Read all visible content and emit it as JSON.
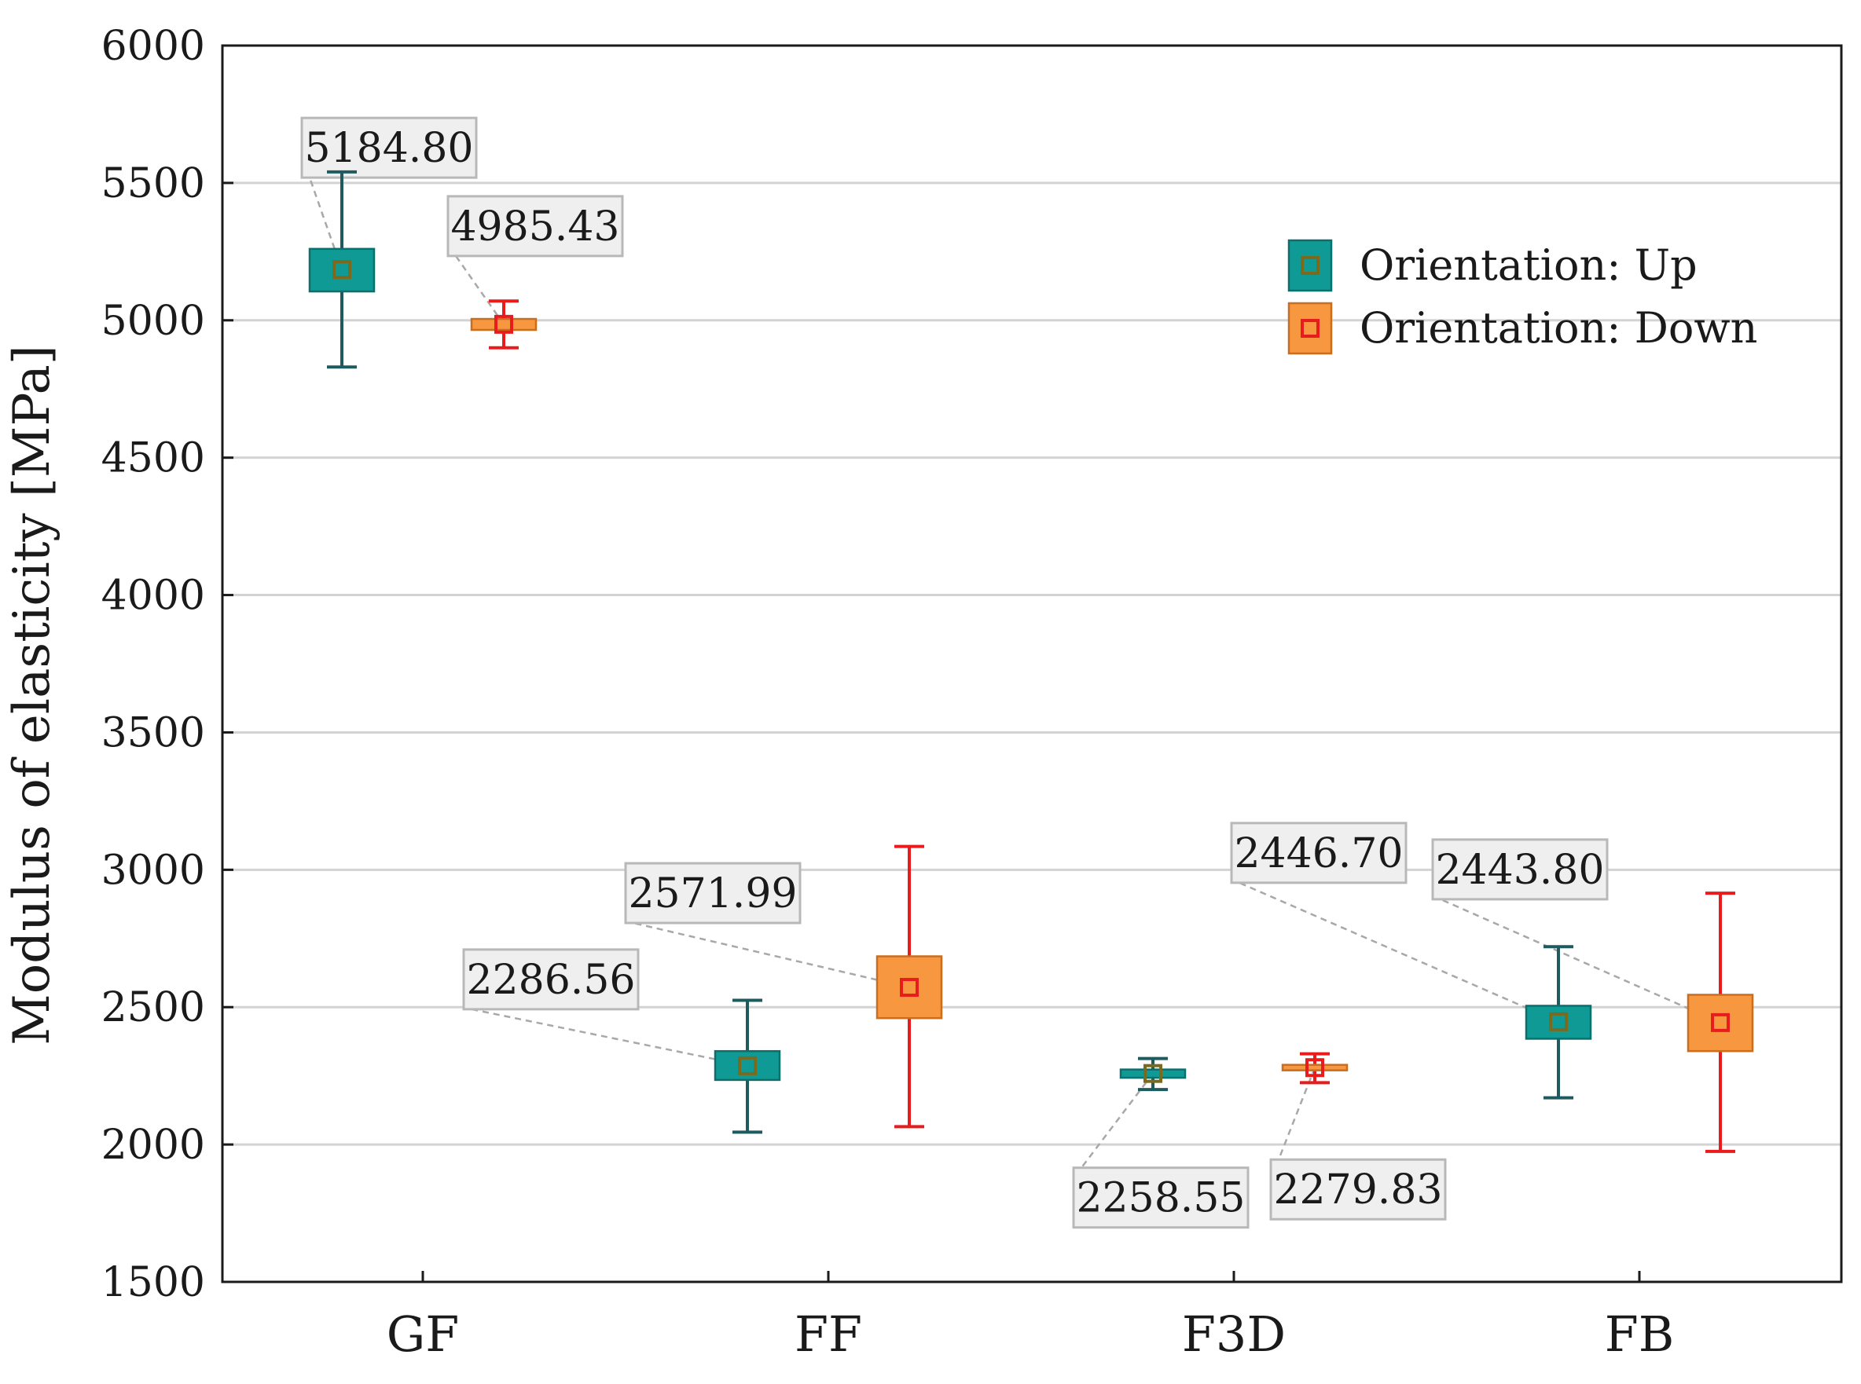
{
  "chart_data": {
    "type": "box",
    "title": "",
    "xlabel": "",
    "ylabel": "Modulus of elasticity [MPa]",
    "ylim": [
      1500,
      6000
    ],
    "yticks": [
      1500,
      2000,
      2500,
      3000,
      3500,
      4000,
      4500,
      5000,
      5500,
      6000
    ],
    "categories": [
      "GF",
      "FF",
      "F3D",
      "FB"
    ],
    "grid": "horizontal",
    "legend_position": "top-right",
    "series": [
      {
        "name": "Orientation: Up",
        "box_color": "#0f9a96",
        "box_edge": "#0b6f6c",
        "marker_color": "#7a6a1e",
        "whisker_color": "#1f5a5e",
        "points": [
          {
            "category": "GF",
            "mean": 5184.8,
            "box_low": 5105,
            "box_high": 5260,
            "whisker_low": 4830,
            "whisker_high": 5540,
            "label": "5184.80"
          },
          {
            "category": "FF",
            "mean": 2286.56,
            "box_low": 2235,
            "box_high": 2340,
            "whisker_low": 2045,
            "whisker_high": 2525,
            "label": "2286.56"
          },
          {
            "category": "F3D",
            "mean": 2258.55,
            "box_low": 2243,
            "box_high": 2273,
            "whisker_low": 2200,
            "whisker_high": 2313,
            "label": "2258.55"
          },
          {
            "category": "FB",
            "mean": 2446.7,
            "box_low": 2385,
            "box_high": 2505,
            "whisker_low": 2170,
            "whisker_high": 2720,
            "label": "2446.70"
          }
        ]
      },
      {
        "name": "Orientation: Down",
        "box_color": "#f7973f",
        "box_edge": "#c96d1f",
        "marker_color": "#e81c1c",
        "whisker_color": "#e81c1c",
        "points": [
          {
            "category": "GF",
            "mean": 4985.43,
            "box_low": 4965,
            "box_high": 5005,
            "whisker_low": 4900,
            "whisker_high": 5070,
            "label": "4985.43"
          },
          {
            "category": "FF",
            "mean": 2571.99,
            "box_low": 2460,
            "box_high": 2685,
            "whisker_low": 2065,
            "whisker_high": 3085,
            "label": "2571.99"
          },
          {
            "category": "F3D",
            "mean": 2279.83,
            "box_low": 2270,
            "box_high": 2290,
            "whisker_low": 2225,
            "whisker_high": 2330,
            "label": "2279.83"
          },
          {
            "category": "FB",
            "mean": 2443.8,
            "box_low": 2340,
            "box_high": 2545,
            "whisker_low": 1975,
            "whisker_high": 2915,
            "label": "2443.80"
          }
        ]
      }
    ]
  }
}
